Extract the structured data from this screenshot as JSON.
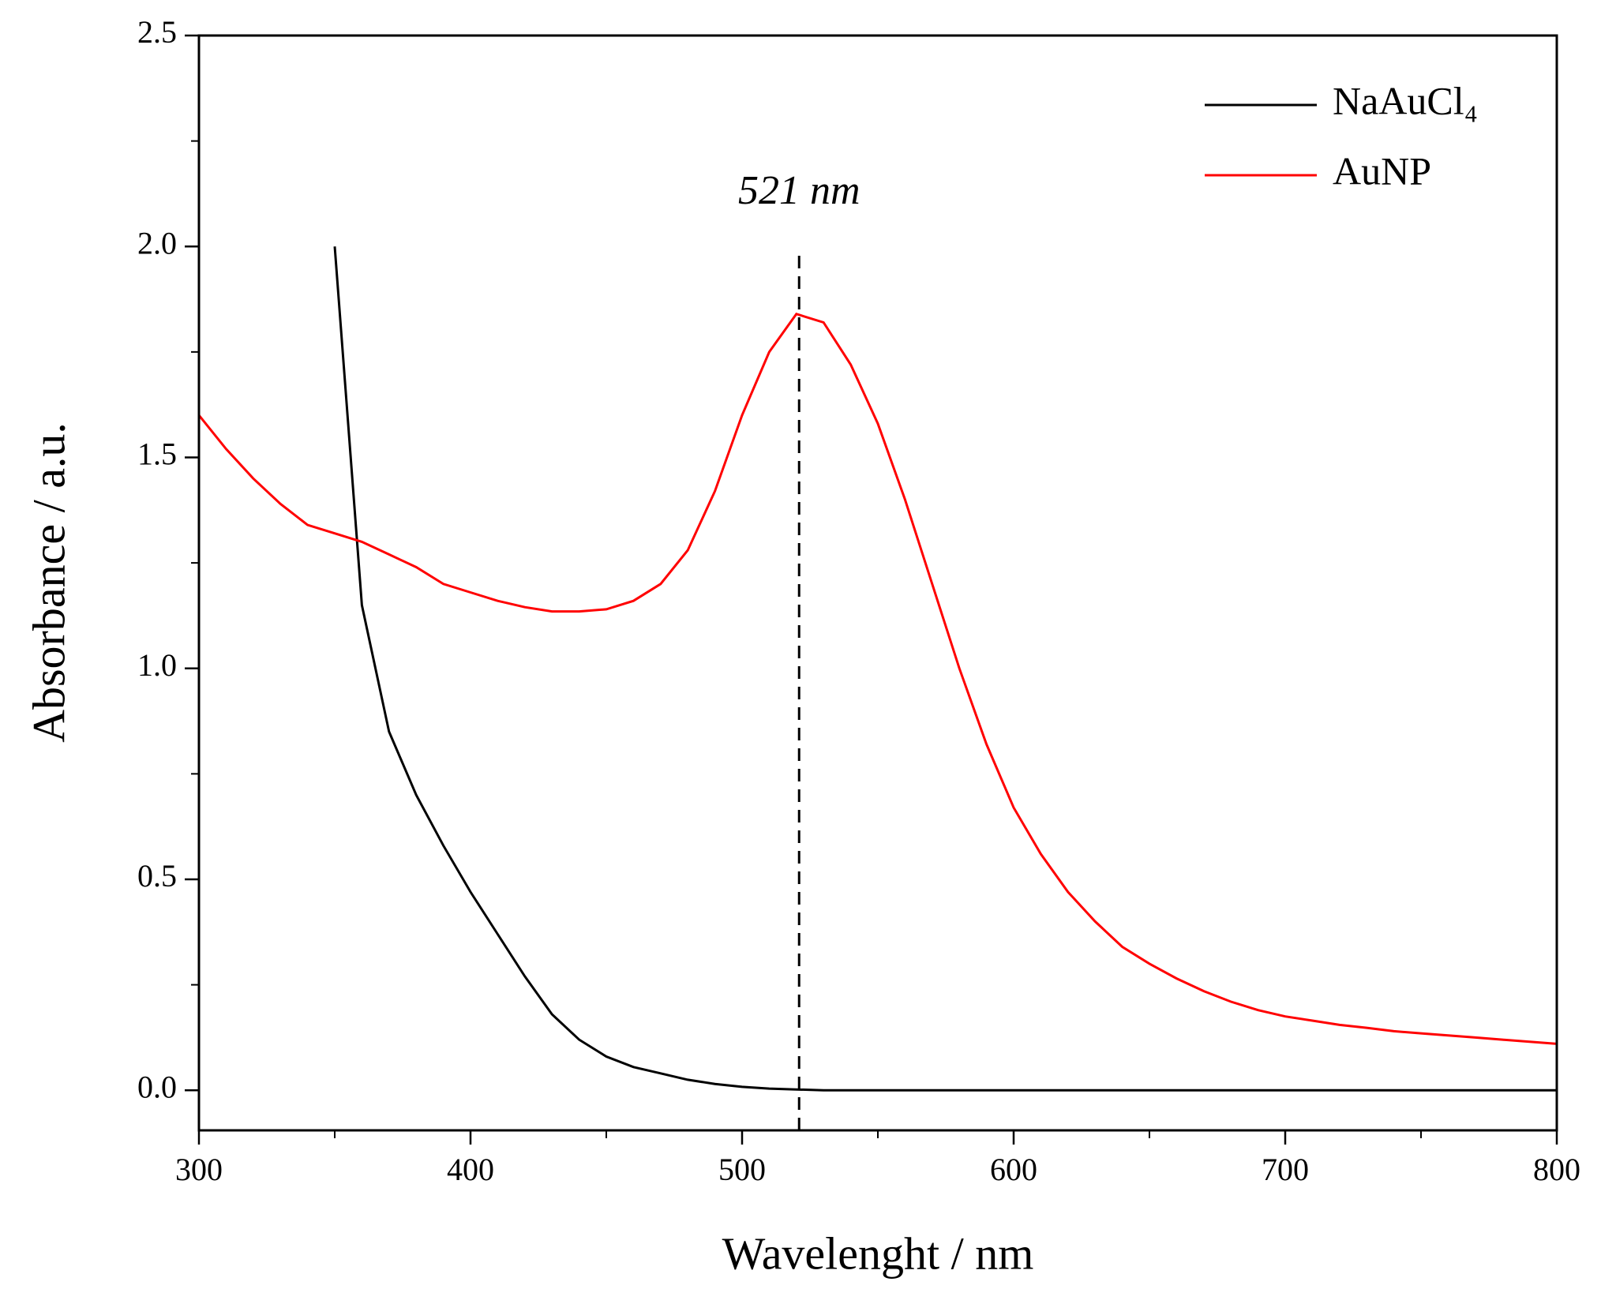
{
  "chart_data": {
    "type": "line",
    "xlabel": "Wavelenght / nm",
    "ylabel": "Absorbance / a.u.",
    "x": [
      300,
      310,
      320,
      330,
      340,
      350,
      360,
      370,
      380,
      390,
      400,
      410,
      420,
      430,
      440,
      450,
      460,
      470,
      480,
      490,
      500,
      510,
      520,
      530,
      540,
      550,
      560,
      570,
      580,
      590,
      600,
      610,
      620,
      630,
      640,
      650,
      660,
      670,
      680,
      690,
      700,
      710,
      720,
      730,
      740,
      750,
      760,
      770,
      780,
      790,
      800
    ],
    "series": [
      {
        "name": "NaAuCl₄",
        "color": "#000000",
        "values": [
          null,
          null,
          null,
          null,
          null,
          2.0,
          1.15,
          0.85,
          0.7,
          0.58,
          0.47,
          0.37,
          0.27,
          0.18,
          0.12,
          0.08,
          0.055,
          0.04,
          0.025,
          0.015,
          0.008,
          0.004,
          0.002,
          0,
          0,
          0,
          0,
          0,
          0,
          0,
          0,
          0,
          0,
          0,
          0,
          0,
          0,
          0,
          0,
          0,
          0,
          0,
          0,
          0,
          0,
          0,
          0,
          0,
          0,
          0,
          0
        ]
      },
      {
        "name": "AuNP",
        "color": "#ff0000",
        "values": [
          1.6,
          1.52,
          1.45,
          1.39,
          1.34,
          1.32,
          1.3,
          1.27,
          1.24,
          1.2,
          1.18,
          1.16,
          1.145,
          1.135,
          1.135,
          1.14,
          1.16,
          1.2,
          1.28,
          1.42,
          1.6,
          1.75,
          1.84,
          1.82,
          1.72,
          1.58,
          1.4,
          1.2,
          1.0,
          0.82,
          0.67,
          0.56,
          0.47,
          0.4,
          0.34,
          0.3,
          0.265,
          0.235,
          0.21,
          0.19,
          0.175,
          0.165,
          0.155,
          0.148,
          0.14,
          0.135,
          0.13,
          0.125,
          0.12,
          0.115,
          0.11
        ]
      }
    ],
    "xlim": [
      300,
      800
    ],
    "xticks": [
      300,
      400,
      500,
      600,
      700,
      800
    ],
    "xminorticks": [
      350,
      450,
      550,
      650,
      750
    ],
    "ylim": [
      -0.095,
      2.5
    ],
    "yticks": [
      {
        "value": 0,
        "label": "0.0"
      },
      0.5,
      {
        "value": 1,
        "label": "1.0"
      },
      1.5,
      {
        "value": 2,
        "label": "2.0"
      },
      2.5
    ],
    "yminorticks": [
      0.25,
      0.75,
      1.25,
      1.75,
      2.25
    ],
    "annotations": [
      {
        "text": "521 nm",
        "x": 521
      }
    ],
    "legend": "upper right",
    "grid": false
  }
}
